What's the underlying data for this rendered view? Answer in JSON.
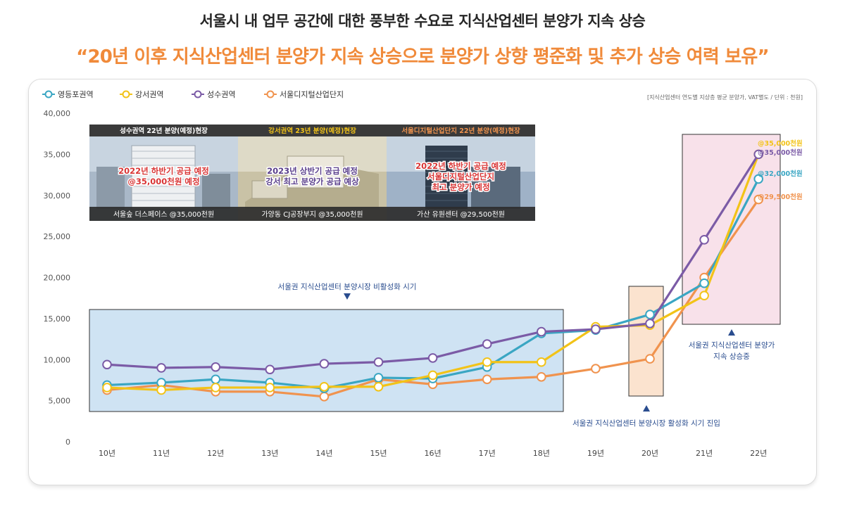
{
  "header": {
    "title": "서울시 내 업무 공간에 대한 풍부한 수요로 지식산업센터 분양가 지속 상승",
    "subtitle": "“20년 이후 지식산업센터 분양가 지속 상승으로 분양가 상향 평준화 및 추가 상승 여력 보유”"
  },
  "chart_data": {
    "type": "line",
    "unit_note": "[지식산업센터 연도별 지상층 평균 분양가, VAT별도 / 단위 : 천원]",
    "categories": [
      "10년",
      "11년",
      "12년",
      "13년",
      "14년",
      "15년",
      "16년",
      "17년",
      "18년",
      "19년",
      "20년",
      "21년",
      "22년"
    ],
    "y_ticks": [
      "40,000",
      "35,000",
      "30,000",
      "25,000",
      "20,000",
      "15,000",
      "10,000",
      "5,000",
      "0"
    ],
    "ylim": [
      0,
      40000
    ],
    "legend_position": "top-left",
    "series": [
      {
        "name": "영등포권역",
        "color": "#3aa6c3",
        "values": [
          6900,
          7200,
          7600,
          7200,
          6500,
          7800,
          7700,
          9100,
          13200,
          13600,
          15500,
          19300,
          32000
        ],
        "end_label": "@32,000천원"
      },
      {
        "name": "강서권역",
        "color": "#f2c318",
        "values": [
          6600,
          6300,
          6600,
          6600,
          6700,
          6700,
          8100,
          9700,
          9700,
          14000,
          14200,
          17800,
          35000
        ],
        "end_label": "@35,000천원"
      },
      {
        "name": "성수권역",
        "color": "#7b5ba6",
        "values": [
          9400,
          9000,
          9100,
          8800,
          9500,
          9700,
          10200,
          11900,
          13400,
          13700,
          14400,
          24600,
          35000
        ],
        "end_label": "@35,000천원"
      },
      {
        "name": "서울디지털산업단지",
        "color": "#f0934e",
        "values": [
          6300,
          6900,
          6100,
          6100,
          5500,
          7600,
          7000,
          7600,
          7900,
          8900,
          10100,
          20000,
          29500
        ],
        "end_label": "@29,500천원"
      }
    ],
    "annotations": {
      "inactive_period": "서울권 지식산업센터 분양시장 비활성화 시기",
      "active_entry": "서울권 지식산업센터 분양시장 활성화 시기 진입",
      "rising_line1": "서울권 지식산업센터 분양가",
      "rising_line2": "지속 상승중"
    },
    "photos": [
      {
        "header": "성수권역 22년 분양(예정)현장",
        "header_color": "#ffffff",
        "overlay_lines": [
          "2022년 하반기 공급 예정",
          "@35,000천원 예정"
        ],
        "overlay_color": "#d93535",
        "caption": "서울숲 더스페이스 @35,000천원",
        "style": "city"
      },
      {
        "header": "강서권역 23년 분양(예정)현장",
        "header_color": "#f2c318",
        "overlay_lines": [
          "2023년 상반기 공급 예정",
          "강서 최고 분양가 공급 예상"
        ],
        "overlay_color": "#5a3f8c",
        "caption": "가양동 CJ공장부지 @35,000천원",
        "style": "render"
      },
      {
        "header": "서울디지털산업단지 22년 분양(예정)현장",
        "header_color": "#f0934e",
        "overlay_lines": [
          "2022년 하반기 공급 예정",
          "서울디지털산업단지",
          "최고 분양가 예정"
        ],
        "overlay_color": "#d93535",
        "caption": "가산 유원센터 @29,500천원",
        "style": "tower"
      }
    ]
  }
}
